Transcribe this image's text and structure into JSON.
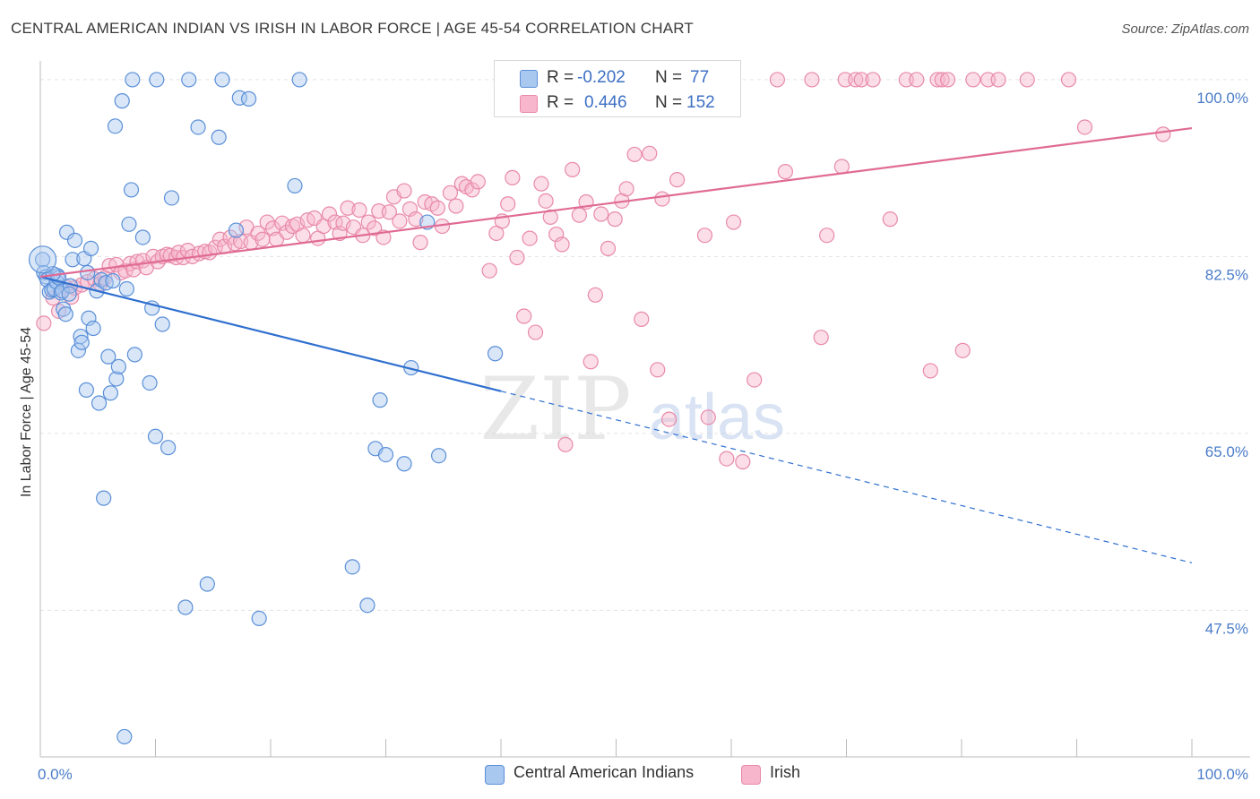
{
  "title": "CENTRAL AMERICAN INDIAN VS IRISH IN LABOR FORCE | AGE 45-54 CORRELATION CHART",
  "source": "Source: ZipAtlas.com",
  "legend": {
    "row1": {
      "r_label": "R =",
      "r_value": "-0.202",
      "n_label": "N =",
      "n_value": "77"
    },
    "row2": {
      "r_label": "R =",
      "r_value": "0.446",
      "n_label": "N =",
      "n_value": "152"
    }
  },
  "bottom_legend": {
    "series1": "Central American Indians",
    "series2": "Irish"
  },
  "colors": {
    "blue_fill": "#a9c8f0",
    "blue_stroke": "#5a8fd8",
    "blue_line": "#2f6fcf",
    "pink_fill": "#f7b6cb",
    "pink_stroke": "#e889a8",
    "pink_line": "#e06b95",
    "tick_color": "#4a7cc9",
    "grid": "#e3e3e3"
  },
  "chart_data": {
    "type": "scatter",
    "title": "CENTRAL AMERICAN INDIAN VS IRISH IN LABOR FORCE | AGE 45-54 CORRELATION CHART",
    "xlabel": "",
    "ylabel": "In Labor Force | Age 45-54",
    "xlim": [
      0,
      100
    ],
    "ylim": [
      33,
      101.5
    ],
    "x_tick_labels": [
      "0.0%",
      "100.0%"
    ],
    "y_ticks": [
      47.5,
      65.0,
      82.5,
      100.0
    ],
    "y_tick_labels": [
      "47.5%",
      "65.0%",
      "82.5%",
      "100.0%"
    ],
    "grid": true,
    "legend_position": "top-center",
    "watermark": "ZIPatlas",
    "series": [
      {
        "name": "Central American Indians",
        "r": -0.202,
        "n": 77,
        "trend": {
          "x": [
            0,
            100
          ],
          "y": [
            80.5,
            52.2
          ],
          "solid_until_x": 40
        },
        "points": [
          [
            0.2,
            82.2
          ],
          [
            0.3,
            80.9
          ],
          [
            0.5,
            80.5
          ],
          [
            0.6,
            80.2
          ],
          [
            0.8,
            79.0
          ],
          [
            1.0,
            79.2
          ],
          [
            1.2,
            79.3
          ],
          [
            1.4,
            80.0
          ],
          [
            1.5,
            80.6
          ],
          [
            1.6,
            80.4
          ],
          [
            1.8,
            78.9
          ],
          [
            1.9,
            79.1
          ],
          [
            2.0,
            77.3
          ],
          [
            2.2,
            76.8
          ],
          [
            2.3,
            84.9
          ],
          [
            2.6,
            79.6
          ],
          [
            2.8,
            82.2
          ],
          [
            3.0,
            84.1
          ],
          [
            3.3,
            73.2
          ],
          [
            3.5,
            74.6
          ],
          [
            3.6,
            74.0
          ],
          [
            3.8,
            82.3
          ],
          [
            4.0,
            69.3
          ],
          [
            4.1,
            80.9
          ],
          [
            4.2,
            76.4
          ],
          [
            4.4,
            83.3
          ],
          [
            4.6,
            75.4
          ],
          [
            4.9,
            79.1
          ],
          [
            5.1,
            68.0
          ],
          [
            5.3,
            80.2
          ],
          [
            5.5,
            58.6
          ],
          [
            5.7,
            79.9
          ],
          [
            5.9,
            72.6
          ],
          [
            6.1,
            69.0
          ],
          [
            6.3,
            80.1
          ],
          [
            6.5,
            95.4
          ],
          [
            6.6,
            70.4
          ],
          [
            6.8,
            71.6
          ],
          [
            7.1,
            97.9
          ],
          [
            7.3,
            35.0
          ],
          [
            7.5,
            79.3
          ],
          [
            7.7,
            85.7
          ],
          [
            7.9,
            89.1
          ],
          [
            8.0,
            100.0
          ],
          [
            8.2,
            72.8
          ],
          [
            8.9,
            84.4
          ],
          [
            9.5,
            70.0
          ],
          [
            9.7,
            77.4
          ],
          [
            10.0,
            64.7
          ],
          [
            10.1,
            100.0
          ],
          [
            10.6,
            75.8
          ],
          [
            11.1,
            63.6
          ],
          [
            11.4,
            88.3
          ],
          [
            12.6,
            47.8
          ],
          [
            12.9,
            100.0
          ],
          [
            13.7,
            95.3
          ],
          [
            14.5,
            50.1
          ],
          [
            15.5,
            94.3
          ],
          [
            15.8,
            100.0
          ],
          [
            17.0,
            85.1
          ],
          [
            17.3,
            98.2
          ],
          [
            18.1,
            98.1
          ],
          [
            19.0,
            46.7
          ],
          [
            22.1,
            89.5
          ],
          [
            22.5,
            100.0
          ],
          [
            27.1,
            51.8
          ],
          [
            28.4,
            48.0
          ],
          [
            29.1,
            63.5
          ],
          [
            29.5,
            68.3
          ],
          [
            30.0,
            62.9
          ],
          [
            31.6,
            62.0
          ],
          [
            32.2,
            71.5
          ],
          [
            33.6,
            85.9
          ],
          [
            34.6,
            62.8
          ],
          [
            39.5,
            72.9
          ],
          [
            2.5,
            78.8
          ],
          [
            1.1,
            80.8
          ]
        ]
      },
      {
        "name": "Irish",
        "r": 0.446,
        "n": 152,
        "trend": {
          "x": [
            0,
            100
          ],
          "y": [
            80.5,
            95.2
          ]
        },
        "points": [
          [
            0.3,
            75.9
          ],
          [
            1.1,
            78.4
          ],
          [
            1.6,
            77.1
          ],
          [
            2.2,
            79.5
          ],
          [
            2.7,
            78.5
          ],
          [
            3.0,
            79.4
          ],
          [
            3.6,
            79.7
          ],
          [
            4.1,
            80.0
          ],
          [
            4.7,
            80.3
          ],
          [
            5.2,
            79.8
          ],
          [
            5.6,
            80.4
          ],
          [
            6.0,
            81.6
          ],
          [
            6.6,
            81.7
          ],
          [
            7.0,
            80.9
          ],
          [
            7.4,
            81.1
          ],
          [
            7.8,
            81.8
          ],
          [
            8.1,
            81.2
          ],
          [
            8.4,
            82.0
          ],
          [
            8.9,
            82.1
          ],
          [
            9.2,
            81.4
          ],
          [
            9.8,
            82.5
          ],
          [
            10.2,
            82.0
          ],
          [
            10.6,
            82.5
          ],
          [
            11.0,
            82.7
          ],
          [
            11.3,
            82.6
          ],
          [
            11.8,
            82.4
          ],
          [
            12.0,
            82.9
          ],
          [
            12.4,
            82.4
          ],
          [
            12.8,
            83.1
          ],
          [
            13.2,
            82.5
          ],
          [
            13.8,
            82.8
          ],
          [
            14.3,
            83.0
          ],
          [
            14.7,
            82.9
          ],
          [
            15.2,
            83.4
          ],
          [
            15.6,
            84.2
          ],
          [
            16.0,
            83.5
          ],
          [
            16.5,
            84.4
          ],
          [
            16.9,
            83.8
          ],
          [
            17.4,
            84.0
          ],
          [
            17.9,
            85.4
          ],
          [
            18.3,
            83.9
          ],
          [
            18.9,
            84.8
          ],
          [
            19.3,
            84.2
          ],
          [
            19.7,
            85.9
          ],
          [
            20.2,
            85.3
          ],
          [
            20.5,
            84.2
          ],
          [
            21.0,
            85.8
          ],
          [
            21.4,
            84.9
          ],
          [
            21.9,
            85.5
          ],
          [
            22.3,
            85.7
          ],
          [
            22.8,
            84.6
          ],
          [
            23.2,
            86.1
          ],
          [
            23.8,
            86.3
          ],
          [
            24.1,
            84.3
          ],
          [
            24.6,
            85.5
          ],
          [
            25.1,
            86.7
          ],
          [
            25.6,
            85.9
          ],
          [
            26.0,
            84.8
          ],
          [
            26.3,
            85.8
          ],
          [
            26.7,
            87.3
          ],
          [
            27.2,
            85.4
          ],
          [
            27.7,
            87.1
          ],
          [
            28.0,
            84.6
          ],
          [
            28.5,
            85.9
          ],
          [
            29.0,
            85.3
          ],
          [
            29.4,
            87.0
          ],
          [
            29.8,
            84.4
          ],
          [
            30.3,
            86.9
          ],
          [
            30.7,
            88.4
          ],
          [
            31.2,
            86.0
          ],
          [
            31.6,
            89.0
          ],
          [
            32.1,
            87.2
          ],
          [
            32.6,
            86.2
          ],
          [
            33.0,
            83.9
          ],
          [
            33.4,
            87.9
          ],
          [
            34.0,
            87.7
          ],
          [
            34.5,
            87.3
          ],
          [
            34.9,
            85.5
          ],
          [
            35.6,
            88.8
          ],
          [
            36.1,
            87.5
          ],
          [
            36.6,
            89.7
          ],
          [
            37.0,
            89.4
          ],
          [
            37.5,
            89.1
          ],
          [
            38.0,
            89.9
          ],
          [
            39.0,
            81.1
          ],
          [
            39.6,
            84.8
          ],
          [
            40.1,
            86.0
          ],
          [
            40.6,
            87.7
          ],
          [
            41.0,
            90.3
          ],
          [
            41.4,
            82.4
          ],
          [
            42.0,
            76.6
          ],
          [
            42.5,
            84.3
          ],
          [
            43.0,
            75.0
          ],
          [
            43.5,
            89.7
          ],
          [
            43.9,
            88.0
          ],
          [
            44.3,
            86.4
          ],
          [
            44.8,
            84.7
          ],
          [
            45.3,
            83.7
          ],
          [
            45.6,
            63.9
          ],
          [
            46.2,
            91.1
          ],
          [
            46.8,
            86.6
          ],
          [
            47.4,
            87.9
          ],
          [
            47.8,
            72.1
          ],
          [
            48.2,
            78.7
          ],
          [
            48.7,
            86.7
          ],
          [
            49.3,
            83.3
          ],
          [
            49.9,
            86.2
          ],
          [
            50.5,
            88.0
          ],
          [
            50.9,
            89.2
          ],
          [
            51.6,
            92.6
          ],
          [
            52.2,
            76.3
          ],
          [
            52.5,
            100.0
          ],
          [
            52.9,
            92.7
          ],
          [
            53.6,
            71.3
          ],
          [
            54.0,
            88.2
          ],
          [
            54.6,
            66.4
          ],
          [
            55.3,
            90.1
          ],
          [
            56.2,
            98.8
          ],
          [
            57.2,
            100.0
          ],
          [
            57.7,
            84.6
          ],
          [
            58.0,
            66.6
          ],
          [
            59.1,
            100.0
          ],
          [
            59.6,
            62.5
          ],
          [
            60.2,
            85.9
          ],
          [
            61.0,
            62.2
          ],
          [
            62.0,
            70.3
          ],
          [
            64.0,
            100.0
          ],
          [
            64.7,
            90.9
          ],
          [
            67.0,
            100.0
          ],
          [
            67.8,
            74.5
          ],
          [
            68.3,
            84.6
          ],
          [
            69.6,
            91.4
          ],
          [
            69.9,
            100.0
          ],
          [
            70.8,
            100.0
          ],
          [
            71.3,
            100.0
          ],
          [
            72.3,
            100.0
          ],
          [
            73.8,
            86.2
          ],
          [
            75.2,
            100.0
          ],
          [
            76.1,
            100.0
          ],
          [
            77.3,
            71.2
          ],
          [
            77.9,
            100.0
          ],
          [
            78.3,
            100.0
          ],
          [
            78.8,
            100.0
          ],
          [
            80.1,
            73.2
          ],
          [
            81.0,
            100.0
          ],
          [
            82.3,
            100.0
          ],
          [
            83.2,
            100.0
          ],
          [
            85.7,
            100.0
          ],
          [
            89.3,
            100.0
          ],
          [
            90.7,
            95.3
          ],
          [
            97.5,
            94.6
          ]
        ]
      }
    ]
  }
}
